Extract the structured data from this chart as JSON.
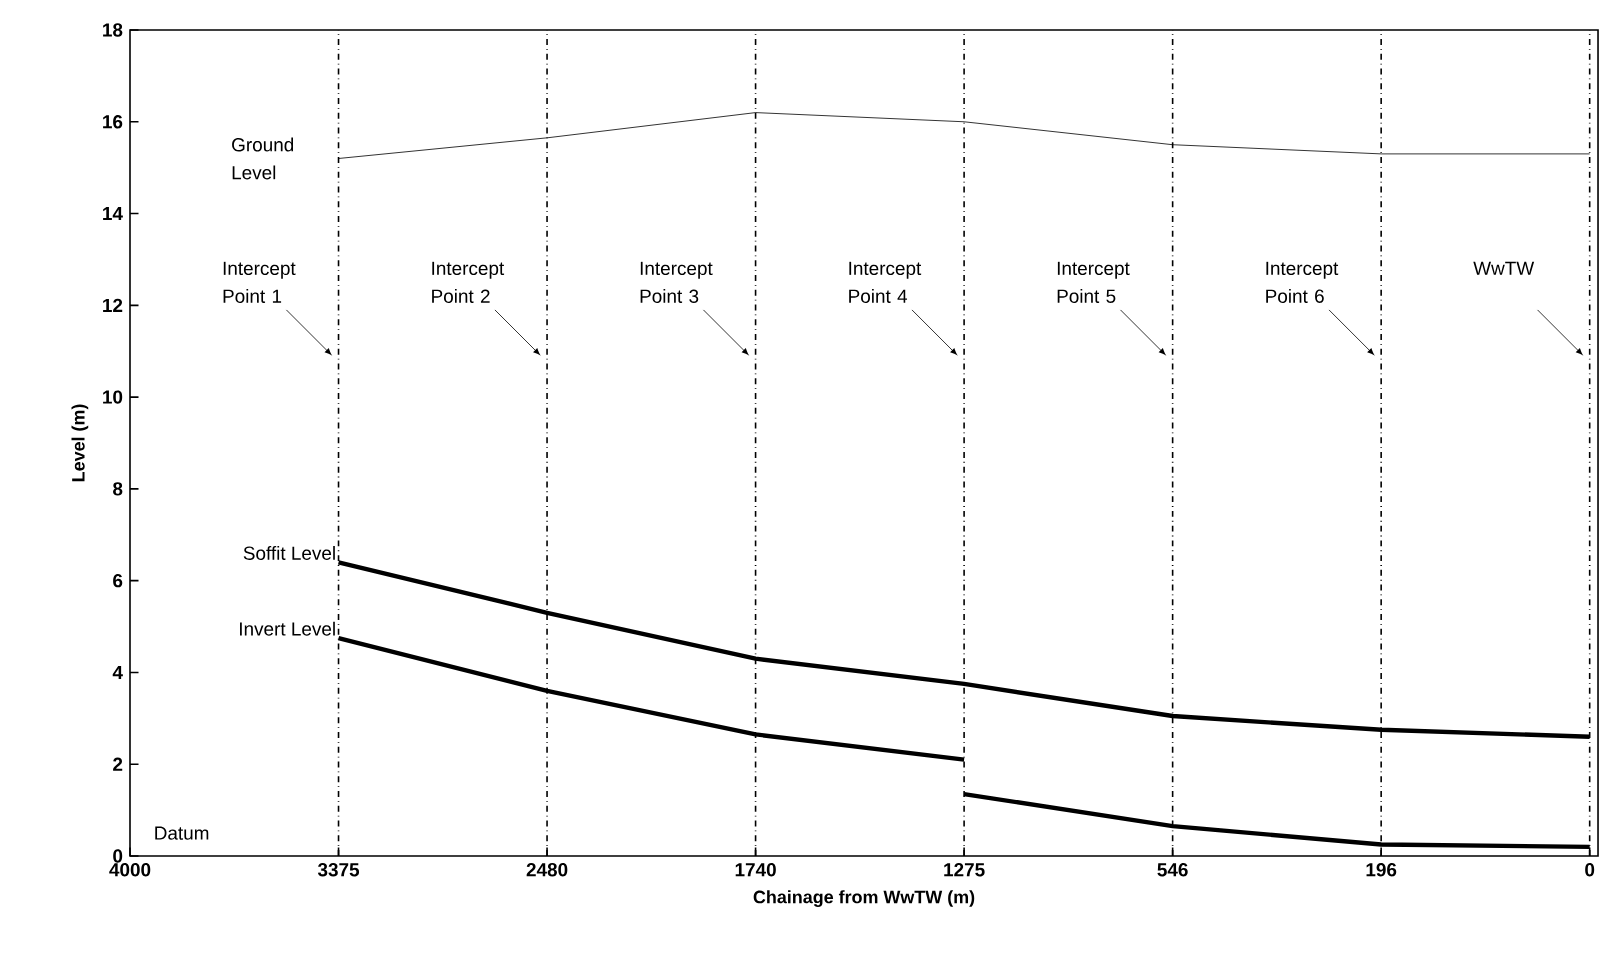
{
  "chart_data": {
    "type": "line",
    "xlabel": "Chainage from WwTW (m)",
    "ylabel": "Level (m)",
    "categories": [
      "4000",
      "3375",
      "2480",
      "1740",
      "1275",
      "546",
      "196",
      "0"
    ],
    "ylim": [
      0,
      18
    ],
    "yticks": [
      0,
      2,
      4,
      6,
      8,
      10,
      12,
      14,
      16,
      18
    ],
    "series": [
      {
        "name": "Ground Level",
        "color": "#000000",
        "values": [
          null,
          15.2,
          15.65,
          16.2,
          16.0,
          15.5,
          15.3,
          15.3
        ]
      },
      {
        "name": "Soffit Level",
        "color": "#000000",
        "values": [
          null,
          6.4,
          5.3,
          4.3,
          3.75,
          3.05,
          2.75,
          2.6
        ]
      },
      {
        "name": "Invert Level",
        "color": "#000000",
        "values": [
          null,
          4.75,
          3.6,
          2.65,
          2.1,
          null,
          null,
          null
        ]
      },
      {
        "color": "#000000",
        "values": [
          null,
          null,
          null,
          null,
          1.35,
          0.65,
          0.25,
          0.2
        ]
      }
    ],
    "ref_lines": [
      {
        "axis": "x",
        "value": "3375",
        "label": "Intercept Point 1",
        "line_style": "dashdot"
      },
      {
        "axis": "x",
        "value": "2480",
        "label": "Intercept Point 2",
        "line_style": "dashdot"
      },
      {
        "axis": "x",
        "value": "1740",
        "label": "Intercept Point 3",
        "line_style": "dashdot"
      },
      {
        "axis": "x",
        "value": "1275",
        "label": "Intercept Point 4",
        "line_style": "dashdot"
      },
      {
        "axis": "x",
        "value": "546",
        "label": "Intercept Point 5",
        "line_style": "dashdot"
      },
      {
        "axis": "x",
        "value": "196",
        "label": "Intercept Point 6",
        "line_style": "dashdot"
      },
      {
        "axis": "x",
        "value": "0",
        "label": "WwTW",
        "line_style": "dashdot"
      }
    ],
    "annotations": [
      "Datum"
    ],
    "grid": false,
    "marker": "none",
    "line_style": "solid"
  }
}
